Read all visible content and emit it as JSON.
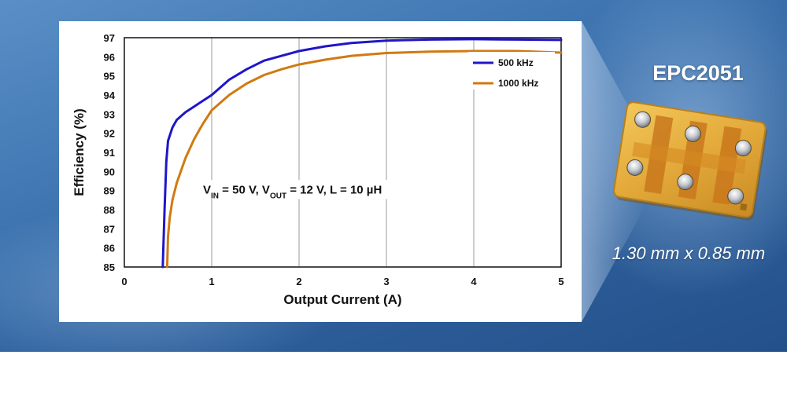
{
  "product": {
    "name": "EPC2051",
    "size": "1.30 mm x 0.85 mm"
  },
  "colors": {
    "series_500": "#1f16c8",
    "series_1000": "#d07a12",
    "banner": "#3f76b2"
  },
  "chart_data": {
    "type": "line",
    "xlabel": "Output Current (A)",
    "ylabel": "Efficiency (%)",
    "xlim": [
      0,
      5
    ],
    "ylim": [
      85,
      97
    ],
    "xticks": [
      "0",
      "1",
      "2",
      "3",
      "4",
      "5"
    ],
    "yticks": [
      "85",
      "86",
      "87",
      "88",
      "89",
      "90",
      "91",
      "92",
      "93",
      "94",
      "95",
      "96",
      "97"
    ],
    "grid": "vertical",
    "legend_position": "top-right",
    "annotation": {
      "parts": [
        {
          "text": "V",
          "sub": false
        },
        {
          "text": "IN",
          "sub": true
        },
        {
          "text": " = 50 V, V",
          "sub": false
        },
        {
          "text": "OUT",
          "sub": true
        },
        {
          "text": " = 12 V, L = 10 µH",
          "sub": false
        }
      ]
    },
    "series": [
      {
        "name": "500 kHz",
        "x": [
          0.44,
          0.46,
          0.48,
          0.5,
          0.55,
          0.6,
          0.7,
          0.8,
          0.9,
          1.0,
          1.2,
          1.4,
          1.6,
          1.8,
          2.0,
          2.3,
          2.6,
          3.0,
          3.5,
          4.0,
          4.5,
          5.0
        ],
        "y": [
          85.0,
          88.0,
          90.5,
          91.6,
          92.3,
          92.7,
          93.1,
          93.4,
          93.7,
          94.0,
          94.8,
          95.35,
          95.8,
          96.05,
          96.3,
          96.55,
          96.72,
          96.85,
          96.9,
          96.92,
          96.9,
          96.88
        ]
      },
      {
        "name": "1000 kHz",
        "x": [
          0.49,
          0.5,
          0.52,
          0.55,
          0.6,
          0.7,
          0.8,
          0.9,
          1.0,
          1.2,
          1.4,
          1.6,
          1.8,
          2.0,
          2.3,
          2.6,
          3.0,
          3.5,
          4.0,
          4.5,
          5.0
        ],
        "y": [
          85.0,
          86.6,
          87.6,
          88.5,
          89.4,
          90.7,
          91.7,
          92.5,
          93.2,
          94.0,
          94.6,
          95.05,
          95.35,
          95.6,
          95.85,
          96.05,
          96.2,
          96.27,
          96.3,
          96.3,
          96.22
        ]
      }
    ]
  }
}
